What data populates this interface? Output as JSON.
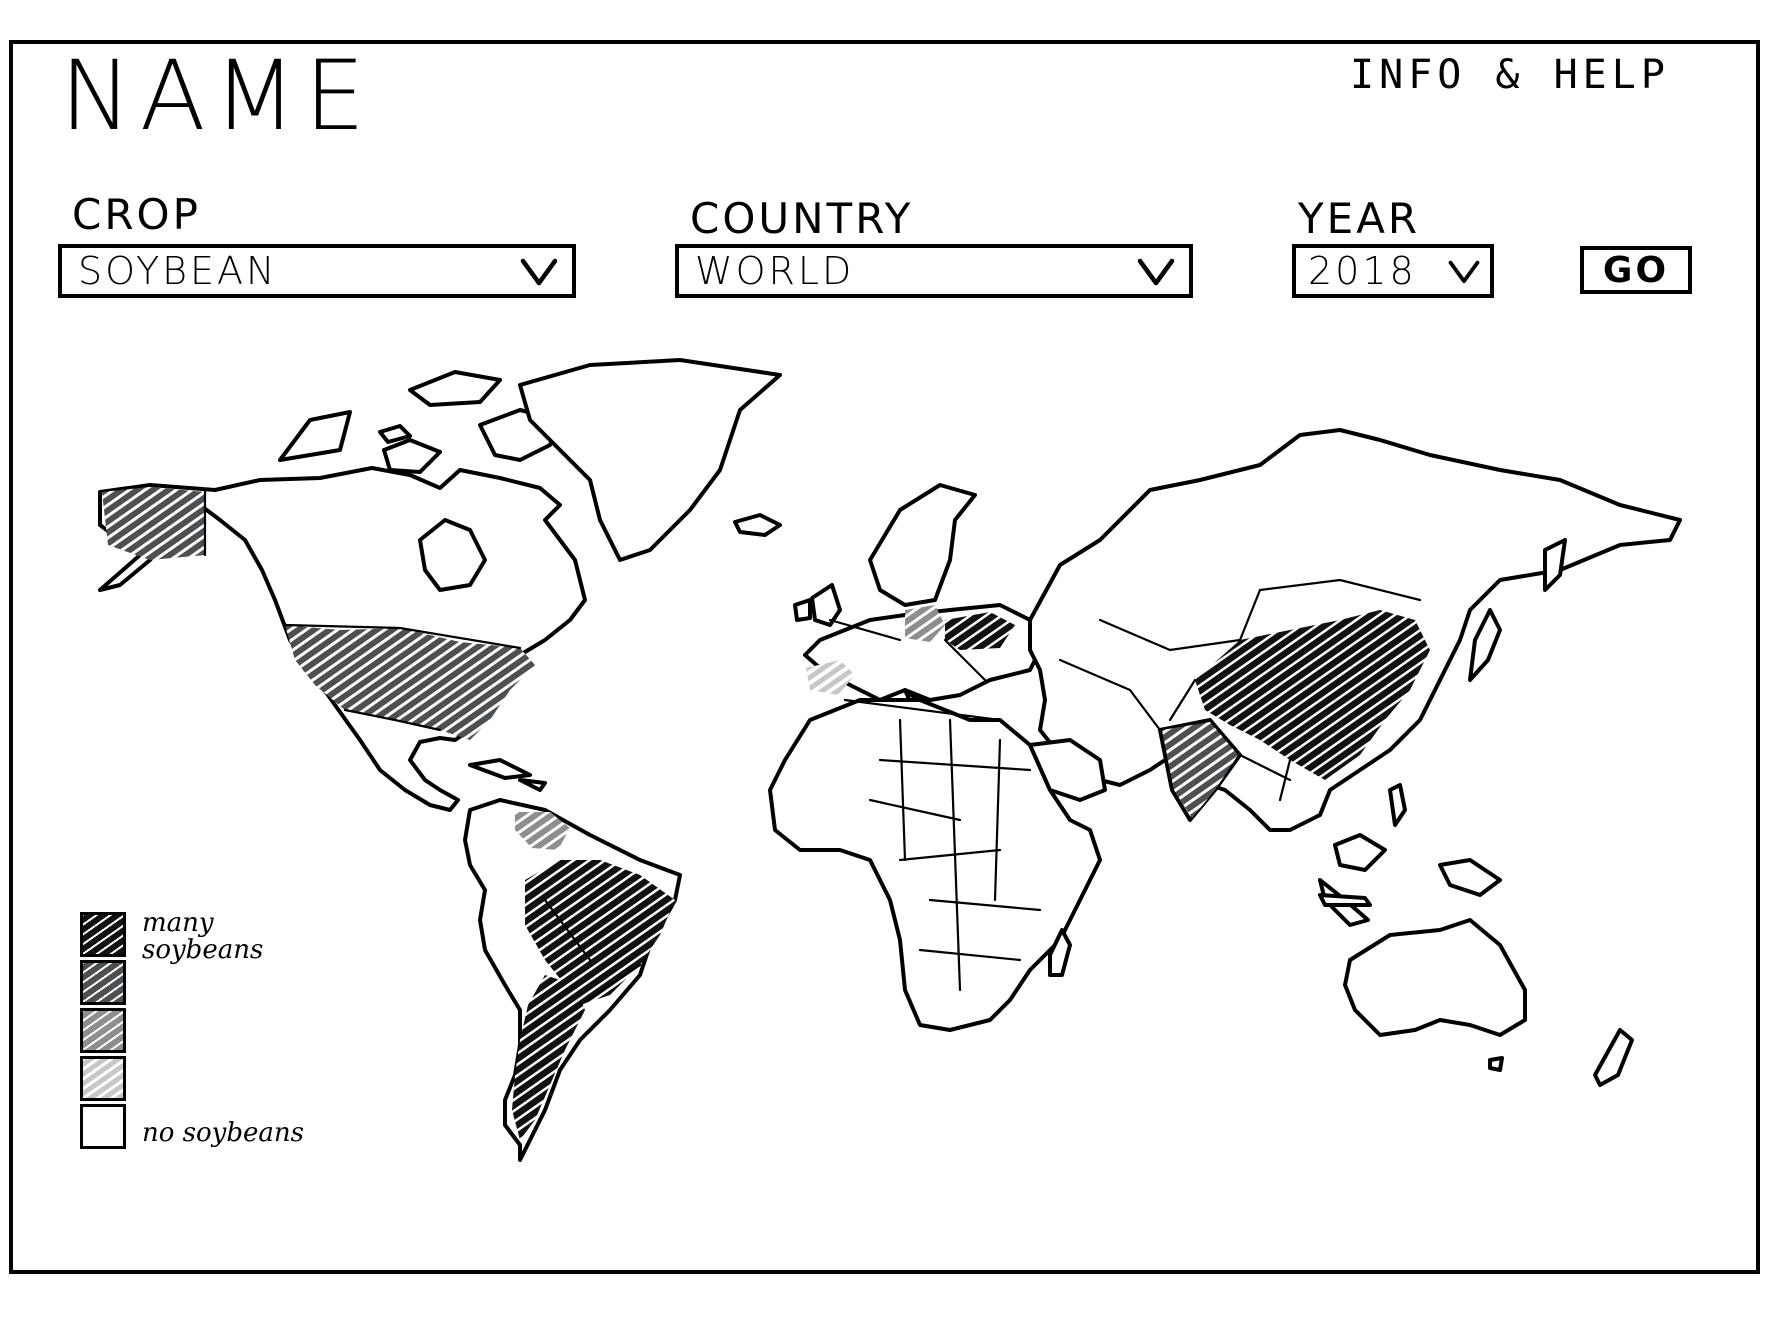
{
  "app": {
    "title": "NAME",
    "info_help": "INFO & HELP"
  },
  "filters": {
    "crop": {
      "label": "CROP",
      "value": "SOYBEAN"
    },
    "country": {
      "label": "COUNTRY",
      "value": "WORLD"
    },
    "year": {
      "label": "YEAR",
      "value": "2018"
    },
    "go_label": "GO"
  },
  "legend": {
    "high_label": "many soybeans",
    "low_label": "no soybeans",
    "colors": [
      "#111111",
      "#4d5052",
      "#8e8e8e",
      "#c9c7c5",
      "#ffffff"
    ]
  },
  "map": {
    "highlighted_regions": [
      {
        "region": "alaska",
        "level": 1
      },
      {
        "region": "usa",
        "level": 1
      },
      {
        "region": "brazil",
        "level": 0
      },
      {
        "region": "argentina",
        "level": 0
      },
      {
        "region": "venezuela",
        "level": 2
      },
      {
        "region": "china",
        "level": 0
      },
      {
        "region": "india",
        "level": 1
      },
      {
        "region": "ukraine",
        "level": 0
      },
      {
        "region": "central-europe",
        "level": 2
      },
      {
        "region": "spain",
        "level": 3
      }
    ]
  }
}
